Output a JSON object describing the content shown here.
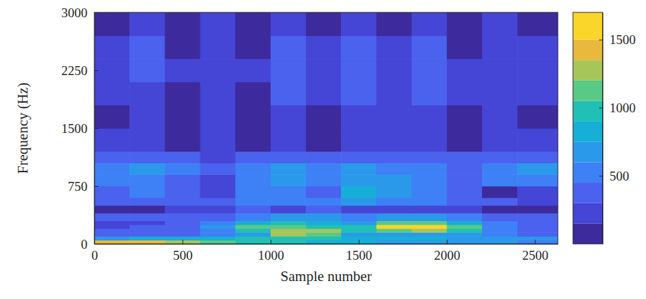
{
  "chart_data": {
    "type": "heatmap",
    "x_label": "Sample number",
    "y_label": "Frequency (Hz)",
    "xlim": [
      0,
      2630
    ],
    "ylim": [
      0,
      3000
    ],
    "xticks": [
      0,
      500,
      1000,
      1500,
      2000,
      2500
    ],
    "yticks": [
      0,
      750,
      1500,
      2250,
      3000
    ],
    "x": [
      0,
      200,
      400,
      600,
      800,
      1000,
      1200,
      1400,
      1600,
      1800,
      2000,
      2200,
      2400,
      2630
    ],
    "y": [
      0,
      50,
      100,
      150,
      200,
      250,
      300,
      400,
      500,
      600,
      750,
      900,
      1050,
      1200,
      1500,
      1800,
      2100,
      2400,
      2700,
      3000
    ],
    "values": [
      [
        1450,
        1400,
        1250,
        1050,
        950,
        900,
        850,
        800,
        700,
        700,
        650,
        600,
        550
      ],
      [
        700,
        750,
        800,
        850,
        900,
        950,
        900,
        850,
        800,
        750,
        700,
        650,
        600
      ],
      [
        350,
        350,
        400,
        500,
        700,
        1200,
        1150,
        700,
        650,
        700,
        600,
        500,
        400
      ],
      [
        300,
        350,
        400,
        550,
        900,
        1300,
        1250,
        950,
        1100,
        1300,
        900,
        500,
        400
      ],
      [
        250,
        300,
        350,
        600,
        1050,
        1150,
        1000,
        900,
        1500,
        1550,
        1100,
        550,
        350
      ],
      [
        200,
        250,
        300,
        500,
        850,
        900,
        800,
        700,
        1100,
        1150,
        800,
        450,
        300
      ],
      [
        300,
        350,
        400,
        400,
        550,
        650,
        600,
        550,
        600,
        600,
        500,
        400,
        350
      ],
      [
        100,
        100,
        150,
        250,
        300,
        200,
        350,
        250,
        250,
        200,
        200,
        100,
        100
      ],
      [
        350,
        400,
        400,
        300,
        500,
        450,
        500,
        600,
        550,
        450,
        400,
        300,
        250
      ],
      [
        400,
        450,
        400,
        200,
        550,
        500,
        400,
        750,
        700,
        500,
        350,
        100,
        150
      ],
      [
        500,
        550,
        350,
        150,
        550,
        600,
        550,
        650,
        600,
        550,
        400,
        450,
        500
      ],
      [
        550,
        650,
        550,
        300,
        450,
        650,
        550,
        600,
        500,
        550,
        400,
        550,
        650
      ],
      [
        350,
        400,
        350,
        250,
        300,
        400,
        300,
        400,
        350,
        350,
        300,
        350,
        400
      ],
      [
        150,
        250,
        100,
        200,
        100,
        250,
        100,
        200,
        250,
        200,
        100,
        250,
        150
      ],
      [
        100,
        200,
        100,
        150,
        100,
        200,
        100,
        150,
        200,
        150,
        100,
        200,
        100
      ],
      [
        150,
        250,
        100,
        250,
        100,
        300,
        150,
        350,
        200,
        300,
        150,
        200,
        150
      ],
      [
        200,
        300,
        150,
        200,
        150,
        350,
        200,
        400,
        200,
        350,
        150,
        250,
        200
      ],
      [
        150,
        300,
        100,
        250,
        100,
        300,
        150,
        300,
        150,
        300,
        100,
        200,
        150
      ],
      [
        100,
        250,
        100,
        200,
        100,
        250,
        100,
        250,
        100,
        250,
        100,
        150,
        100
      ]
    ],
    "colorbar": {
      "clim": [
        0,
        1700
      ],
      "cticks": [
        500,
        1000,
        1500
      ],
      "levels": [
        0,
        150,
        300,
        450,
        600,
        750,
        900,
        1050,
        1200,
        1350,
        1500,
        1700
      ],
      "colors": [
        "#3d2a9c",
        "#4545d6",
        "#4a62ee",
        "#3e80f6",
        "#2b99ea",
        "#16afd6",
        "#20c0b4",
        "#58ca86",
        "#a8c55a",
        "#e8b93c",
        "#fad62a"
      ]
    }
  }
}
